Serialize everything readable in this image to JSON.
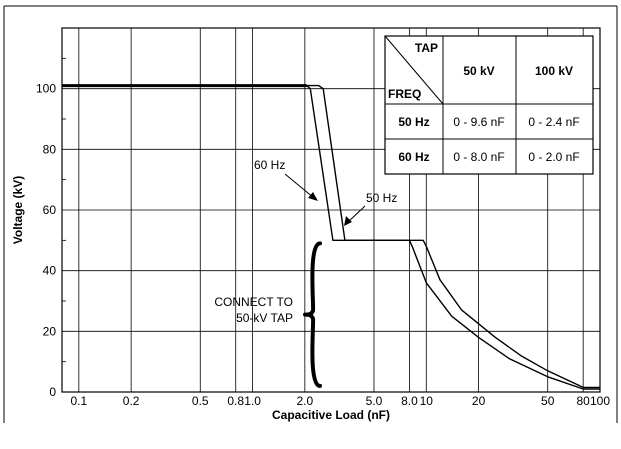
{
  "chart_data": {
    "type": "line",
    "xlabel": "Capacitive Load (nF)",
    "ylabel": "Voltage (kV)",
    "xscale": "log",
    "xlim": [
      0.08,
      100
    ],
    "ylim": [
      0,
      120
    ],
    "x_ticks": [
      0.1,
      0.2,
      0.5,
      0.8,
      1.0,
      2.0,
      5.0,
      8.0,
      10,
      20,
      50,
      80,
      100
    ],
    "x_tick_labels": [
      "0.1",
      "0.2",
      "0.5",
      "0.8",
      "1.0",
      "2.0",
      "5.0",
      "8.0",
      "10",
      "20",
      "50",
      "80",
      "100"
    ],
    "y_ticks": [
      0,
      20,
      40,
      60,
      80,
      100
    ],
    "y_tick_labels": [
      "0",
      "20",
      "40",
      "60",
      "80",
      "100"
    ],
    "grid": true,
    "series": [
      {
        "name": "60 Hz",
        "points": [
          [
            0.08,
            101
          ],
          [
            2.05,
            101
          ],
          [
            2.15,
            100
          ],
          [
            2.9,
            50
          ],
          [
            8.0,
            50
          ],
          [
            8.3,
            48
          ],
          [
            10,
            36
          ],
          [
            14,
            25
          ],
          [
            20,
            18
          ],
          [
            30,
            11
          ],
          [
            50,
            5
          ],
          [
            80,
            1
          ],
          [
            100,
            1
          ]
        ]
      },
      {
        "name": "50 Hz",
        "points": [
          [
            0.08,
            101
          ],
          [
            2.4,
            101
          ],
          [
            2.55,
            100
          ],
          [
            3.4,
            50
          ],
          [
            9.6,
            50
          ],
          [
            10,
            48
          ],
          [
            12,
            37
          ],
          [
            16,
            27
          ],
          [
            25,
            18
          ],
          [
            35,
            12
          ],
          [
            50,
            7
          ],
          [
            80,
            1.5
          ],
          [
            100,
            1.5
          ]
        ]
      }
    ],
    "annotations": {
      "label_60": "60 Hz",
      "label_50": "50 Hz",
      "connect_line1": "CONNECT TO",
      "connect_line2": "50-kV TAP"
    },
    "table": {
      "corner_top": "TAP",
      "corner_bottom": "FREQ",
      "col_headers": [
        "50 kV",
        "100 kV"
      ],
      "rows": [
        {
          "freq": "50 Hz",
          "cells": [
            "0 - 9.6 nF",
            "0 - 2.4 nF"
          ]
        },
        {
          "freq": "60 Hz",
          "cells": [
            "0 - 8.0 nF",
            "0 - 2.0 nF"
          ]
        }
      ]
    }
  }
}
